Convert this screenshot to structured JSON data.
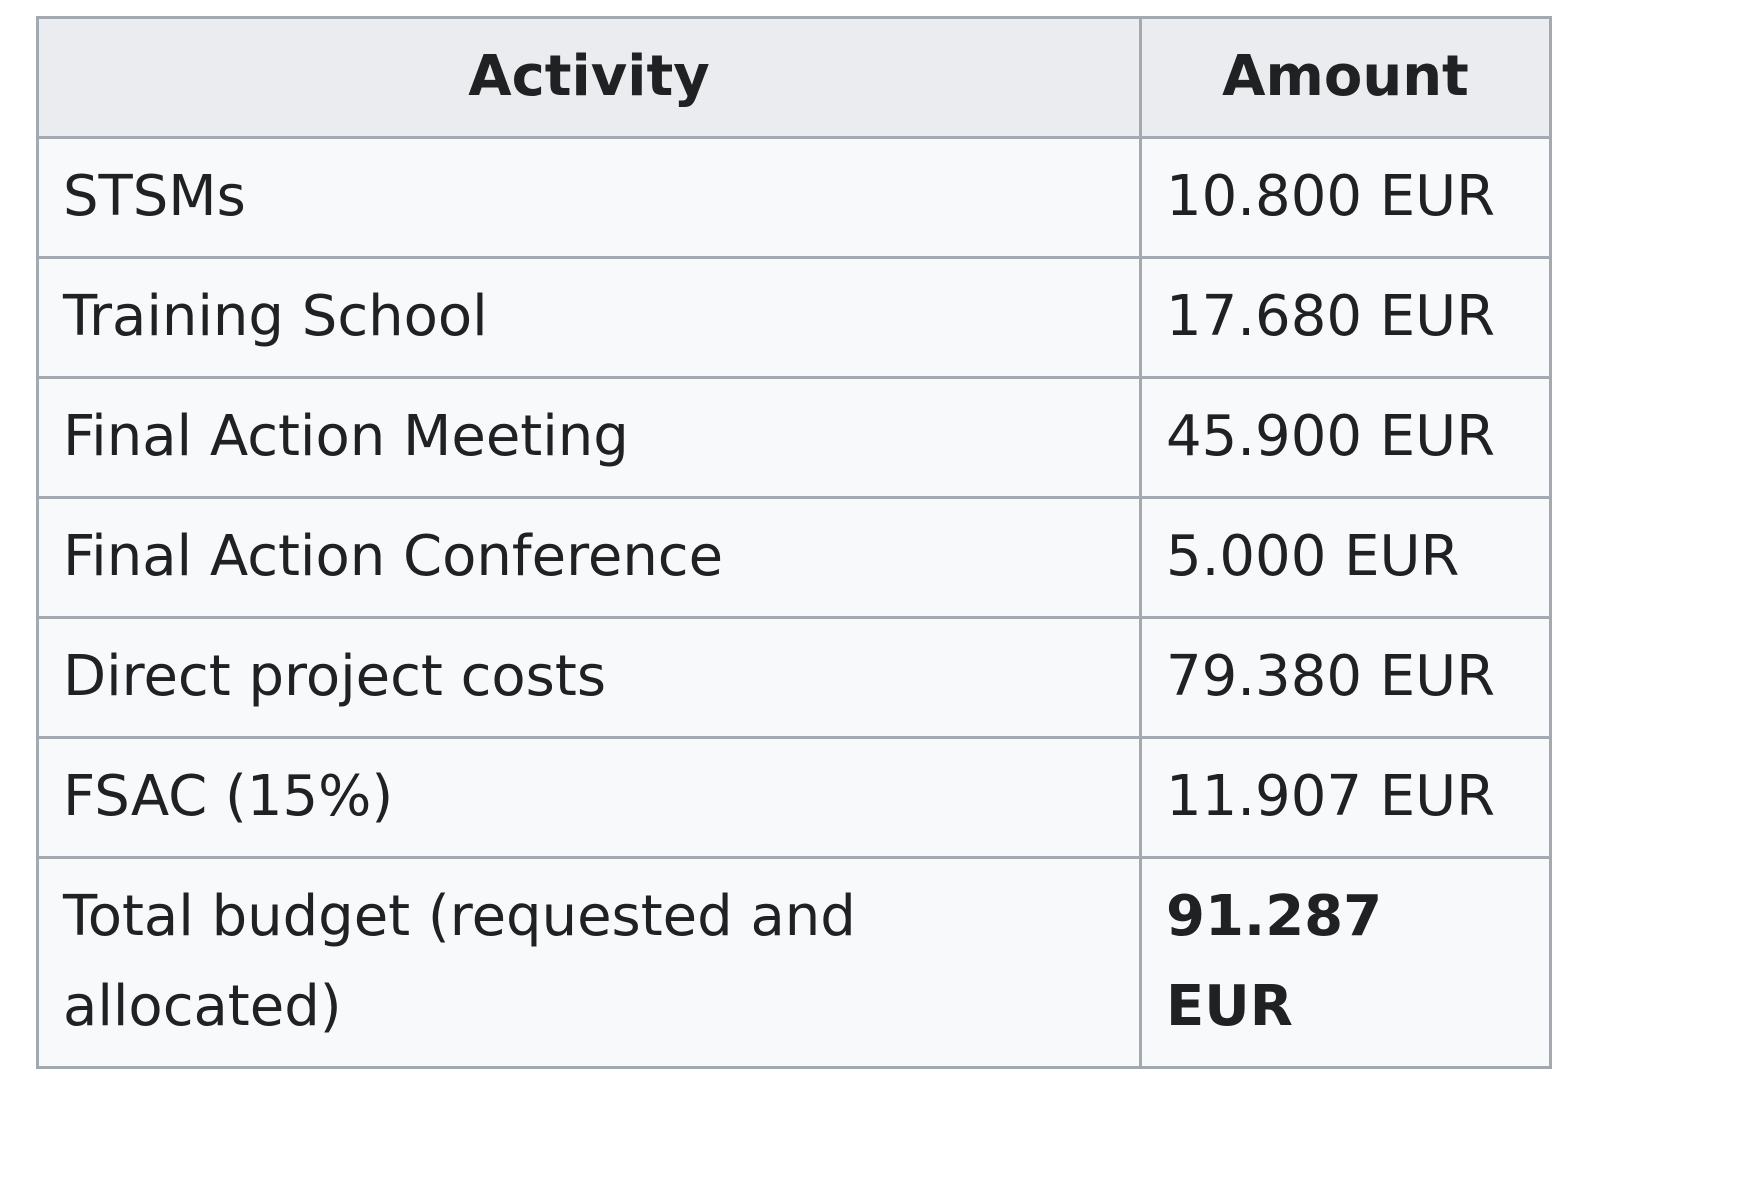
{
  "table": {
    "headers": [
      "Activity",
      "Amount"
    ],
    "rows": [
      {
        "activity": "STSMs",
        "amount": "10.800 EUR"
      },
      {
        "activity": "Training School",
        "amount": "17.680 EUR"
      },
      {
        "activity": "Final Action Meeting",
        "amount": "45.900 EUR"
      },
      {
        "activity": "Final Action Conference",
        "amount": "5.000 EUR"
      },
      {
        "activity": "Direct project costs",
        "amount": "79.380 EUR"
      },
      {
        "activity": "FSAC (15%)",
        "amount": "11.907 EUR"
      },
      {
        "activity": "Total budget (requested and allocated)",
        "amount": "91.287 EUR",
        "bold_amount": true
      }
    ]
  },
  "colors": {
    "header_bg": "#eaecf0",
    "cell_bg": "#f8f9fa",
    "border": "#a2a9b1",
    "text": "#202122"
  }
}
